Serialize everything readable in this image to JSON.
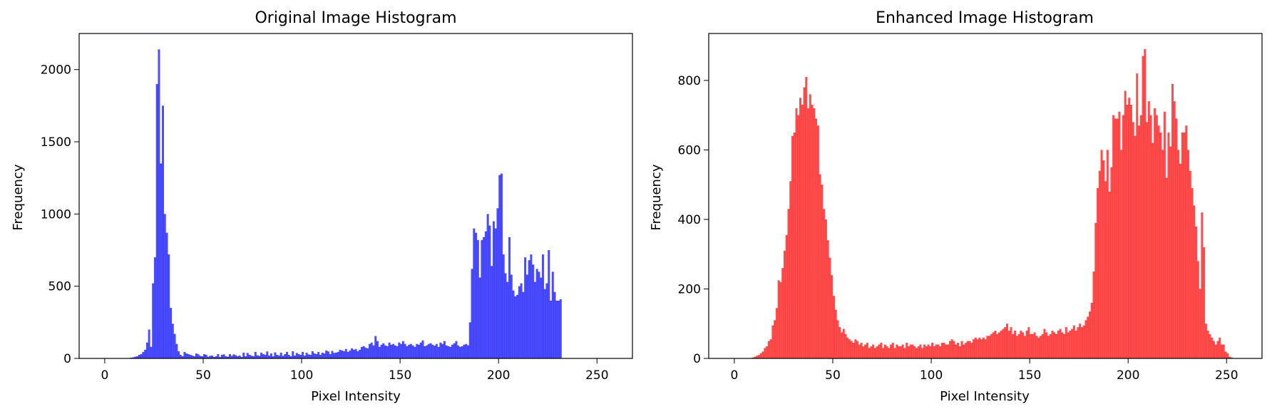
{
  "chart_data": [
    {
      "type": "bar",
      "title": "Original Image Histogram",
      "xlabel": "Pixel Intensity",
      "ylabel": "Frequency",
      "xlim": [
        -13,
        268
      ],
      "ylim": [
        0,
        2250
      ],
      "xticks": [
        0,
        50,
        100,
        150,
        200,
        250
      ],
      "yticks": [
        0,
        500,
        1000,
        1500,
        2000
      ],
      "grid": false,
      "bar_width": 1,
      "color": "#0000ff",
      "alpha": 0.7,
      "x_start": 0,
      "values": [
        0,
        0,
        0,
        0,
        0,
        0,
        0,
        0,
        0,
        0,
        0,
        0,
        3,
        5,
        8,
        12,
        15,
        25,
        30,
        45,
        60,
        110,
        200,
        80,
        520,
        700,
        1900,
        2140,
        1350,
        1750,
        1000,
        870,
        720,
        350,
        240,
        170,
        100,
        50,
        25,
        15,
        45,
        35,
        30,
        25,
        20,
        15,
        35,
        28,
        18,
        15,
        30,
        25,
        12,
        18,
        20,
        10,
        15,
        30,
        10,
        25,
        28,
        15,
        12,
        30,
        18,
        28,
        22,
        15,
        20,
        10,
        40,
        15,
        38,
        25,
        20,
        15,
        45,
        22,
        18,
        40,
        30,
        25,
        48,
        20,
        35,
        15,
        42,
        25,
        20,
        40,
        18,
        30,
        45,
        25,
        15,
        50,
        20,
        38,
        30,
        25,
        45,
        20,
        40,
        28,
        25,
        50,
        35,
        30,
        45,
        25,
        40,
        35,
        55,
        48,
        30,
        52,
        38,
        40,
        45,
        60,
        55,
        50,
        65,
        45,
        55,
        70,
        60,
        65,
        50,
        60,
        80,
        85,
        75,
        70,
        100,
        110,
        90,
        155,
        120,
        80,
        95,
        105,
        90,
        85,
        110,
        95,
        100,
        90,
        85,
        110,
        100,
        120,
        100,
        85,
        95,
        100,
        90,
        80,
        100,
        95,
        110,
        125,
        85,
        90,
        100,
        105,
        95,
        88,
        100,
        80,
        110,
        100,
        120,
        90,
        85,
        80,
        95,
        105,
        120,
        90,
        80,
        85,
        95,
        100,
        90,
        250,
        620,
        900,
        870,
        820,
        560,
        820,
        840,
        880,
        1000,
        920,
        640,
        950,
        900,
        1040,
        1270,
        1280,
        720,
        590,
        530,
        840,
        580,
        470,
        430,
        440,
        500,
        520,
        460,
        700,
        580,
        680,
        720,
        650,
        530,
        620,
        600,
        560,
        720,
        480,
        520,
        750,
        400,
        600,
        460,
        400,
        400,
        410,
        0,
        0,
        0,
        0,
        0,
        0,
        0,
        0,
        0,
        0,
        0,
        0,
        0,
        0,
        0,
        0,
        0
      ]
    },
    {
      "type": "bar",
      "title": "Enhanced Image Histogram",
      "xlabel": "Pixel Intensity",
      "ylabel": "Frequency",
      "xlim": [
        -13,
        268
      ],
      "ylim": [
        0,
        935
      ],
      "xticks": [
        0,
        50,
        100,
        150,
        200,
        250
      ],
      "yticks": [
        0,
        200,
        400,
        600,
        800
      ],
      "grid": false,
      "bar_width": 1,
      "color": "#ff0000",
      "alpha": 0.7,
      "x_start": 0,
      "values": [
        0,
        0,
        0,
        0,
        0,
        0,
        0,
        0,
        1,
        3,
        5,
        8,
        10,
        15,
        20,
        30,
        35,
        50,
        55,
        95,
        110,
        145,
        225,
        220,
        260,
        310,
        355,
        430,
        510,
        640,
        650,
        720,
        700,
        750,
        730,
        780,
        810,
        720,
        760,
        730,
        720,
        690,
        670,
        530,
        500,
        430,
        400,
        340,
        290,
        240,
        180,
        140,
        110,
        90,
        75,
        85,
        70,
        60,
        55,
        50,
        45,
        55,
        50,
        40,
        45,
        35,
        40,
        45,
        30,
        35,
        40,
        30,
        35,
        40,
        45,
        30,
        40,
        35,
        30,
        40,
        45,
        30,
        40,
        35,
        35,
        40,
        30,
        45,
        35,
        40,
        40,
        35,
        30,
        35,
        40,
        30,
        40,
        35,
        40,
        35,
        45,
        35,
        40,
        40,
        35,
        45,
        45,
        40,
        40,
        50,
        55,
        50,
        40,
        45,
        35,
        50,
        40,
        45,
        50,
        50,
        45,
        55,
        60,
        55,
        60,
        55,
        60,
        55,
        65,
        65,
        70,
        75,
        80,
        70,
        75,
        80,
        85,
        90,
        100,
        80,
        90,
        70,
        80,
        65,
        70,
        80,
        75,
        65,
        80,
        90,
        70,
        70,
        75,
        65,
        60,
        65,
        70,
        85,
        75,
        65,
        70,
        80,
        75,
        70,
        80,
        85,
        75,
        70,
        90,
        75,
        80,
        85,
        95,
        80,
        90,
        100,
        90,
        95,
        110,
        120,
        135,
        160,
        250,
        390,
        490,
        540,
        600,
        570,
        510,
        600,
        480,
        550,
        700,
        690,
        690,
        710,
        600,
        700,
        770,
        730,
        750,
        730,
        680,
        640,
        820,
        670,
        700,
        870,
        890,
        680,
        740,
        700,
        620,
        720,
        700,
        670,
        650,
        600,
        710,
        520,
        650,
        610,
        790,
        740,
        690,
        600,
        560,
        650,
        650,
        670,
        600,
        540,
        490,
        440,
        380,
        280,
        200,
        420,
        320,
        100,
        80,
        70,
        60,
        50,
        40,
        50,
        60,
        40,
        40,
        20,
        15,
        5,
        3,
        0,
        0,
        0,
        0,
        0,
        0,
        0
      ]
    }
  ]
}
